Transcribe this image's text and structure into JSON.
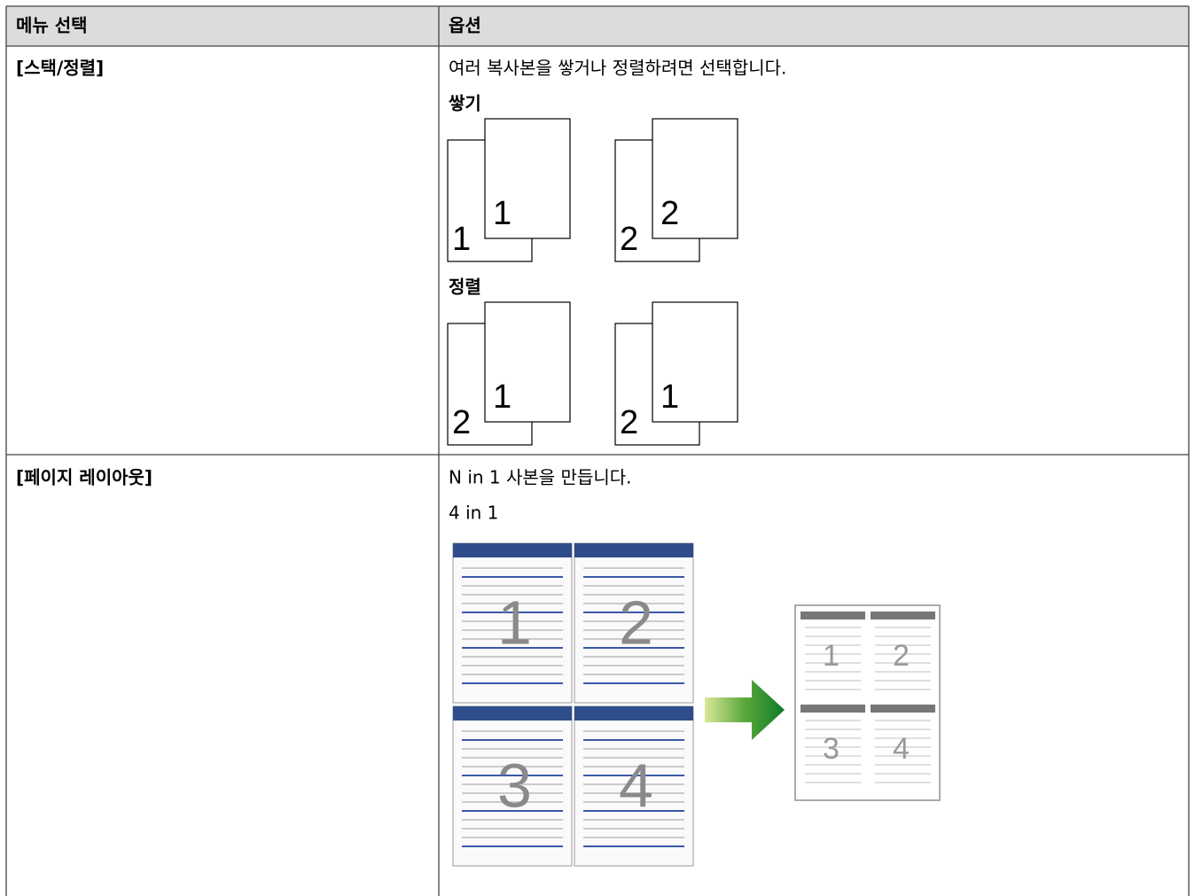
{
  "table": {
    "headers": [
      "메뉴 선택",
      "옵션"
    ],
    "rows": [
      {
        "menu": "[스택/정렬]",
        "description": "여러 복사본을 쌓거나 정렬하려면 선택합니다.",
        "sections": [
          {
            "title": "쌓기",
            "sets": [
              [
                "1",
                "1"
              ],
              [
                "2",
                "2"
              ]
            ]
          },
          {
            "title": "정렬",
            "sets": [
              [
                "2",
                "1"
              ],
              [
                "2",
                "1"
              ]
            ]
          }
        ]
      },
      {
        "menu": "[페이지 레이아웃]",
        "description": "N in 1 사본을 만듭니다.",
        "sections": [
          {
            "title": "4 in 1",
            "pages": [
              "1",
              "2",
              "3",
              "4"
            ]
          }
        ]
      }
    ]
  }
}
